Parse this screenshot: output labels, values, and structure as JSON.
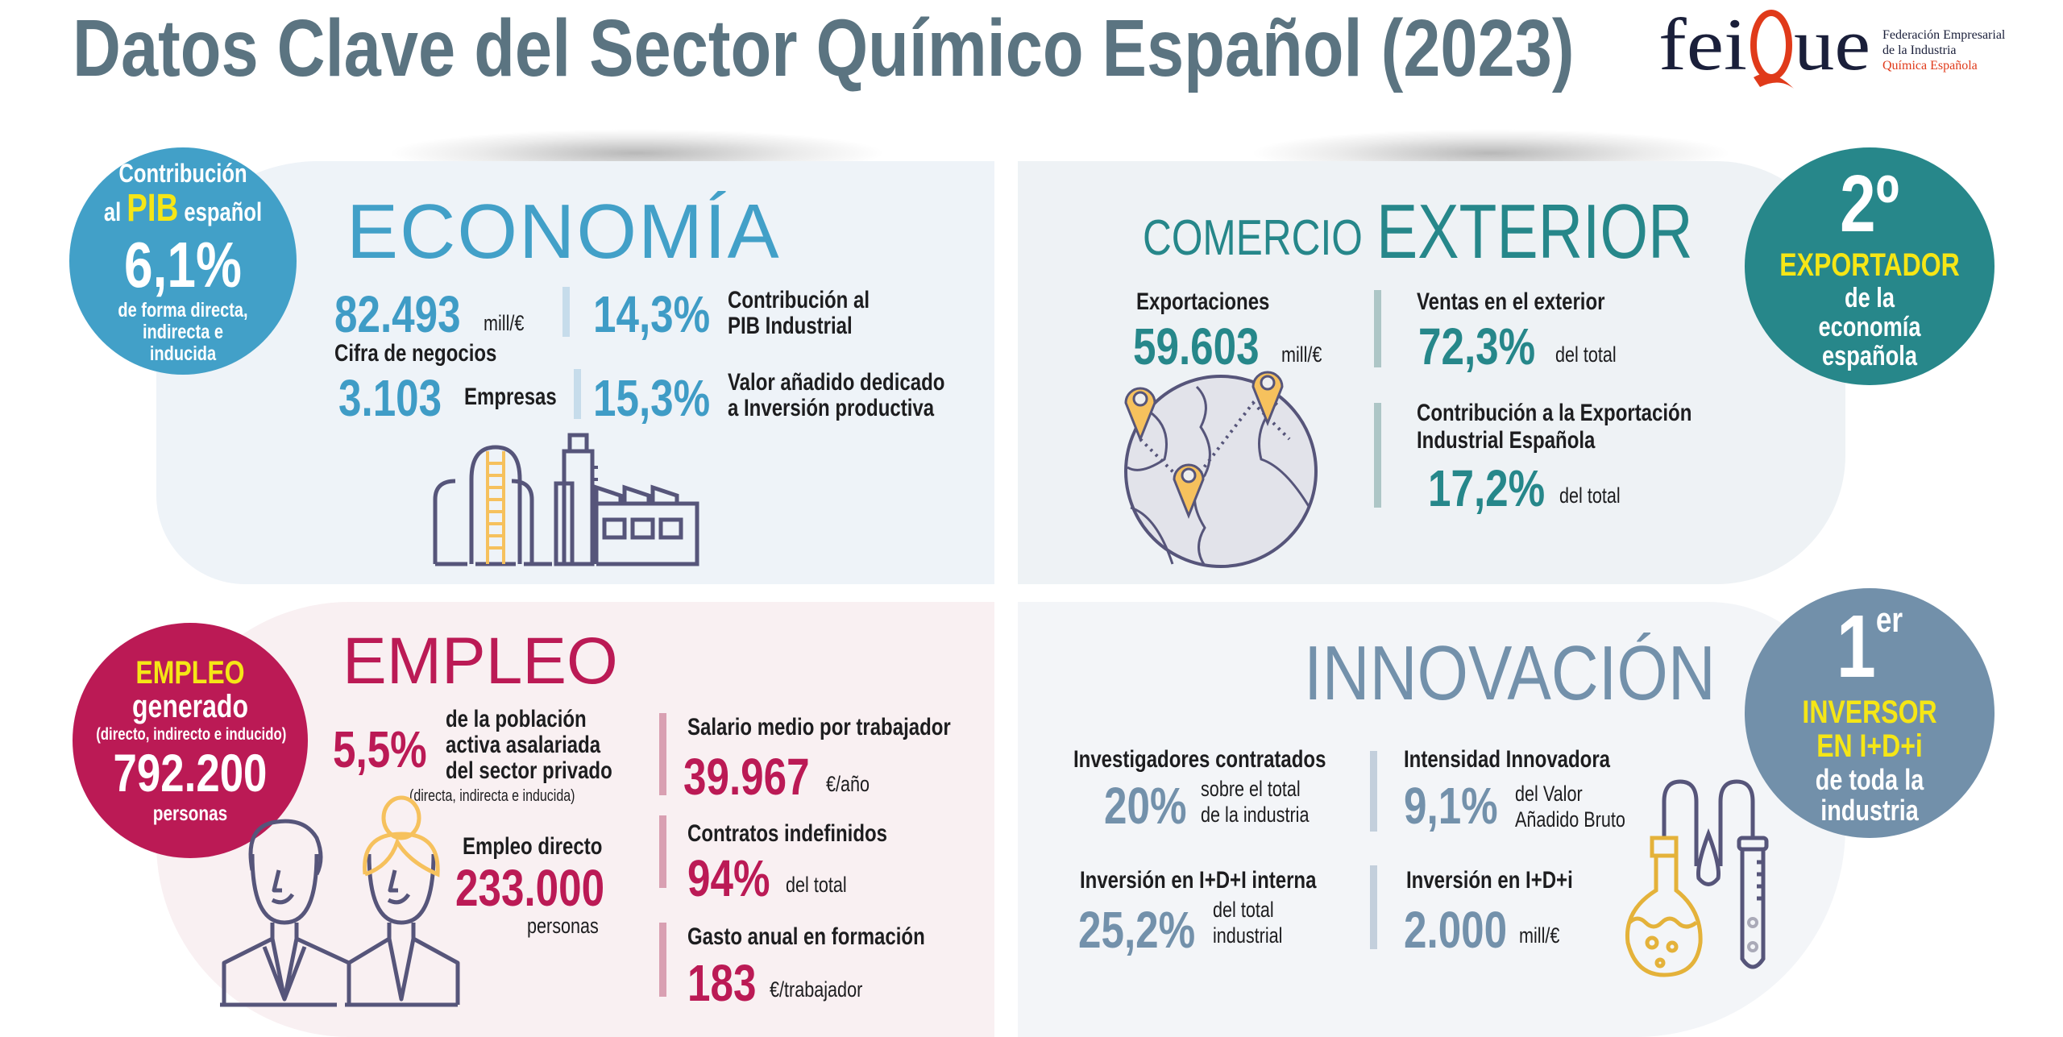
{
  "header": {
    "title": "Datos Clave del Sector Químico Español (2023)"
  },
  "logo": {
    "wordmark": "feiQue",
    "lines": [
      "Federación Empresarial",
      "de la Industria",
      "Química Española"
    ]
  },
  "colors": {
    "title": "#5b7481",
    "economia": "#42a0c8",
    "comercio": "#26878a",
    "empleo": "#bb1a55",
    "innovacion": "#7391ab",
    "highlight": "#f5e616",
    "icon": "#56557a",
    "icon_accent": "#f6c15d"
  },
  "economia": {
    "title": "ECONOMÍA",
    "badge": {
      "line1": "Contribución",
      "pre": "al",
      "highlight": "PIB",
      "post": "español",
      "value": "6,1%",
      "desc": [
        "de forma directa,",
        "indirecta e",
        "inducida"
      ]
    },
    "stats": [
      {
        "value": "82.493",
        "unit": "mill/€",
        "label": "Cifra de negocios"
      },
      {
        "value": "14,3%",
        "label": [
          "Contribución al",
          "PIB Industrial"
        ]
      },
      {
        "value": "3.103",
        "label": "Empresas"
      },
      {
        "value": "15,3%",
        "label": [
          "Valor añadido dedicado",
          "a Inversión productiva"
        ]
      }
    ],
    "icon": "factory-icon"
  },
  "comercio": {
    "title_small": "COMERCIO",
    "title_big": "EXTERIOR",
    "badge": {
      "rank": "2º",
      "highlight": "EXPORTADOR",
      "desc": [
        "de la",
        "economía",
        "española"
      ]
    },
    "stats": [
      {
        "label": "Exportaciones",
        "value": "59.603",
        "unit": "mill/€"
      },
      {
        "label": "Ventas en el exterior",
        "value": "72,3%",
        "unit": "del total"
      },
      {
        "label": [
          "Contribución a la Exportación",
          "Industrial Española"
        ],
        "value": "17,2%",
        "unit": "del total"
      }
    ],
    "icon": "globe-pins-icon"
  },
  "empleo": {
    "title": "EMPLEO",
    "badge": {
      "highlight": "EMPLEO",
      "line2": "generado",
      "note": "(directo, indirecto e inducido)",
      "value": "792.200",
      "unit": "personas"
    },
    "poblacion": {
      "value": "5,5%",
      "label": [
        "de la población",
        "activa asalariada",
        "del sector privado"
      ],
      "note": "(directa, indirecta e inducida)"
    },
    "directo": {
      "label": "Empleo directo",
      "value": "233.000",
      "unit": "personas"
    },
    "stats": [
      {
        "label": "Salario medio por trabajador",
        "value": "39.967",
        "unit": "€/año"
      },
      {
        "label": "Contratos indefinidos",
        "value": "94%",
        "unit": "del total"
      },
      {
        "label": "Gasto anual en formación",
        "value": "183",
        "unit": "€/trabajador"
      }
    ],
    "icon": "workers-icon"
  },
  "innovacion": {
    "title": "INNOVACIÓN",
    "badge": {
      "rank": "1",
      "sup": "er",
      "highlight": [
        "INVERSOR",
        "EN I+D+i"
      ],
      "desc": [
        "de toda la",
        "industria"
      ]
    },
    "stats": [
      {
        "label": "Investigadores contratados",
        "value": "20%",
        "unit": [
          "sobre el total",
          "de la industria"
        ]
      },
      {
        "label": "Intensidad Innovadora",
        "value": "9,1%",
        "unit": [
          "del Valor",
          "Añadido Bruto"
        ]
      },
      {
        "label": "Inversión en I+D+I interna",
        "value": "25,2%",
        "unit": [
          "del total",
          "industrial"
        ]
      },
      {
        "label": "Inversión en I+D+i",
        "value": "2.000",
        "unit": "mill/€"
      }
    ],
    "icon": "lab-flask-icon"
  }
}
